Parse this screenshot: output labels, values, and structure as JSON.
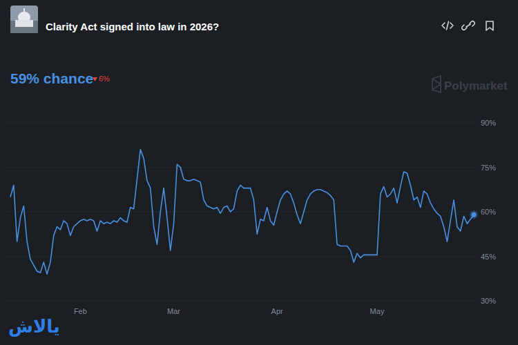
{
  "chart_data": {
    "type": "line",
    "title": "Clarity Act signed into law in 2026?",
    "subtitle": "59% chance",
    "annotations": [
      "6%",
      "Polymarket",
      "یالاش"
    ],
    "categories": [
      null,
      null,
      null,
      null,
      null,
      null,
      null,
      null,
      null,
      null,
      null,
      null,
      null,
      null,
      null,
      null,
      null,
      null,
      null,
      null,
      null,
      "Feb",
      null,
      null,
      null,
      null,
      null,
      null,
      null,
      null,
      null,
      null,
      null,
      null,
      null,
      null,
      null,
      null,
      null,
      null,
      null,
      null,
      null,
      null,
      null,
      null,
      null,
      null,
      null,
      "Mar",
      null,
      null,
      null,
      null,
      null,
      null,
      null,
      null,
      null,
      null,
      null,
      null,
      null,
      null,
      null,
      null,
      null,
      null,
      null,
      null,
      null,
      null,
      null,
      null,
      null,
      null,
      null,
      null,
      null,
      null,
      "Apr",
      null,
      null,
      null,
      null,
      null,
      null,
      null,
      null,
      null,
      null,
      null,
      null,
      null,
      null,
      null,
      null,
      null,
      null,
      null,
      null,
      null,
      null,
      null,
      null,
      null,
      null,
      null,
      null,
      null,
      "May",
      null,
      null,
      null,
      null,
      null,
      null,
      null,
      null,
      null,
      null,
      null,
      null,
      null,
      null,
      null,
      null,
      null,
      null,
      null,
      null,
      null,
      null,
      null,
      null,
      null,
      null,
      null,
      null,
      null
    ],
    "values": [
      65,
      69,
      50,
      58,
      62,
      50,
      44,
      42,
      40,
      39.5,
      43,
      39,
      43,
      52,
      55,
      54,
      57,
      56,
      52,
      55,
      56,
      57,
      57.5,
      57,
      57.5,
      57,
      53.5,
      57,
      56,
      56.5,
      56,
      57,
      56.5,
      58,
      57,
      56.5,
      61.5,
      61,
      71,
      81,
      78,
      70.5,
      68,
      55,
      49,
      60,
      68,
      58,
      47,
      56,
      76,
      75,
      71,
      70.5,
      70.5,
      71,
      70.5,
      70,
      64,
      62,
      61.5,
      61,
      61.5,
      59.5,
      61.5,
      62,
      60,
      61,
      67,
      69,
      68,
      68,
      68,
      64,
      52.5,
      57.5,
      57,
      61.5,
      57,
      55.5,
      60,
      64,
      66,
      67,
      66,
      63,
      59,
      56,
      60,
      64,
      66,
      67,
      67.5,
      67.5,
      67,
      66.5,
      65.5,
      64,
      49,
      48.5,
      48.5,
      48.5,
      47,
      43,
      46,
      44.5,
      45.5,
      45.5,
      45.5,
      45.5,
      45.5,
      66,
      68.5,
      65,
      66,
      68,
      63,
      68.5,
      73.5,
      73,
      69,
      64,
      65,
      61.5,
      67,
      66,
      63,
      61,
      59.5,
      58.5,
      55,
      50,
      57,
      64,
      55,
      53.5,
      58.5,
      56,
      57.5,
      59
    ],
    "color": "#4a90e2",
    "ylim": [
      30,
      90
    ],
    "yticks": [
      {
        "value": 30,
        "label": "30%"
      },
      {
        "value": 45,
        "label": "45%"
      },
      {
        "value": 60,
        "label": "60%"
      },
      {
        "value": 75,
        "label": "75%"
      },
      {
        "value": 90,
        "label": "90%"
      }
    ],
    "grid": true
  }
}
